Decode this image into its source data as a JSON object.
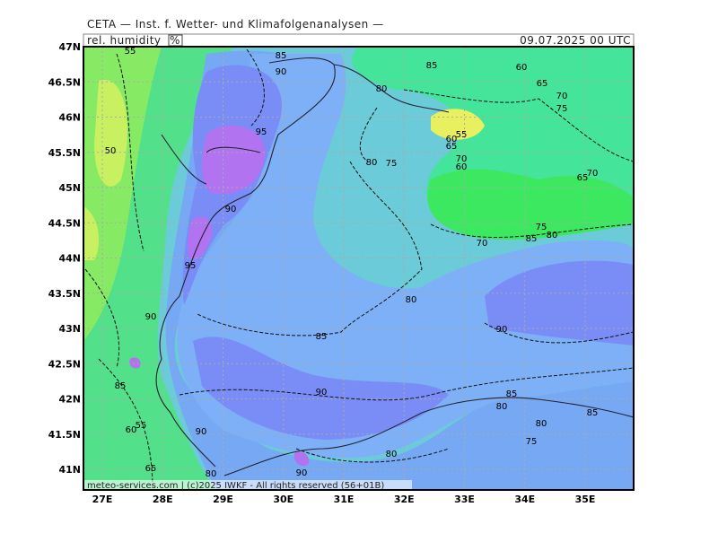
{
  "header": {
    "institute": "CETA — Inst. f. Wetter- und Klimafolgenanalysen —",
    "parameter": "rel. humidity",
    "unit": "%",
    "valid_time": "09.07.2025 00 UTC"
  },
  "map": {
    "lat_labels": [
      "47N",
      "46.5N",
      "46N",
      "45.5N",
      "45N",
      "44.5N",
      "44N",
      "43.5N",
      "43N",
      "42.5N",
      "42N",
      "41.5N",
      "41N"
    ],
    "lon_labels": [
      "27E",
      "28E",
      "29E",
      "30E",
      "31E",
      "32E",
      "33E",
      "34E",
      "35E"
    ],
    "contour_labels": [
      85,
      90,
      85,
      60,
      65,
      70,
      80,
      75,
      55,
      50,
      95,
      55,
      60,
      65,
      70,
      80,
      75,
      60,
      70,
      65,
      90,
      95,
      75,
      85,
      80,
      70,
      80,
      90,
      85,
      90,
      90,
      85,
      80,
      85,
      80,
      75,
      90,
      60,
      55,
      80,
      90,
      80,
      85,
      65
    ],
    "footer": "meteo-services.com | (c)2025 IWKF - All rights reserved (56+01B)"
  }
}
